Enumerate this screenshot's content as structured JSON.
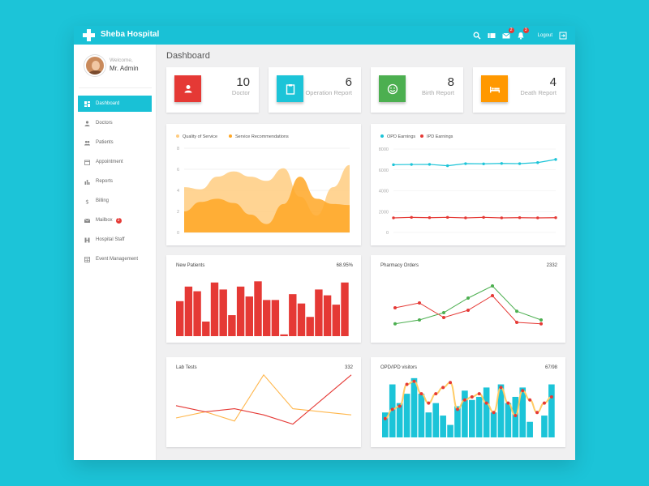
{
  "app": {
    "title": "Sheba Hospital"
  },
  "topbar": {
    "mail_badge": "2",
    "bell_badge": "3",
    "logout_label": "Logout"
  },
  "user": {
    "welcome": "Welcome,",
    "name": "Mr. Admin"
  },
  "nav": [
    {
      "label": "Dashboard",
      "icon": "dashboard-icon",
      "active": true
    },
    {
      "label": "Doctors",
      "icon": "person-icon"
    },
    {
      "label": "Patients",
      "icon": "people-icon"
    },
    {
      "label": "Appointment",
      "icon": "calendar-icon"
    },
    {
      "label": "Reports",
      "icon": "bar-chart-icon"
    },
    {
      "label": "Billing",
      "icon": "dollar-icon"
    },
    {
      "label": "Mailbox",
      "icon": "mail-icon",
      "badge": "2"
    },
    {
      "label": "Hospital Staff",
      "icon": "staff-icon"
    },
    {
      "label": "Event Management",
      "icon": "event-icon"
    }
  ],
  "page": {
    "title": "Dashboard"
  },
  "stats": [
    {
      "value": "10",
      "label": "Doctor",
      "color": "#e53935",
      "icon": "person-icon"
    },
    {
      "value": "6",
      "label": "Operation Report",
      "color": "#1cc4d8",
      "icon": "clipboard-icon"
    },
    {
      "value": "8",
      "label": "Birth Report",
      "color": "#4caf50",
      "icon": "smile-icon"
    },
    {
      "value": "4",
      "label": "Death Report",
      "color": "#ff9800",
      "icon": "bed-icon"
    }
  ],
  "colors": {
    "accent": "#1cc4d8",
    "red": "#e53935",
    "orange": "#ffa726",
    "green": "#4caf50"
  },
  "chart_data": [
    {
      "type": "area",
      "title": "",
      "legend_position": "top-left",
      "x": [
        0,
        1,
        2,
        3,
        4,
        5,
        6,
        7,
        8,
        9,
        10
      ],
      "ylim": [
        0,
        8
      ],
      "yticks": [
        0,
        2,
        4,
        6,
        8
      ],
      "grid": true,
      "series": [
        {
          "name": "Quality of Service",
          "color": "#ffcc80",
          "values": [
            4.3,
            4.1,
            5.3,
            5.8,
            5.3,
            4.9,
            6.1,
            3.4,
            1.6,
            4.3,
            6.4
          ]
        },
        {
          "name": "Service Recommendations",
          "color": "#ffa726",
          "values": [
            2.0,
            2.9,
            3.2,
            2.8,
            1.7,
            0.8,
            2.7,
            5.3,
            3.2,
            2.7,
            2.6
          ]
        }
      ]
    },
    {
      "type": "line",
      "title": "",
      "legend_position": "top-left",
      "x": [
        0,
        1,
        2,
        3,
        4,
        5,
        6,
        7,
        8,
        9
      ],
      "ylim": [
        0,
        8000
      ],
      "yticks": [
        0,
        2000,
        4000,
        6000,
        8000
      ],
      "grid": true,
      "series": [
        {
          "name": "OPD Earnings",
          "color": "#1cc4d8",
          "values": [
            6500,
            6520,
            6530,
            6400,
            6600,
            6580,
            6620,
            6600,
            6700,
            7000
          ]
        },
        {
          "name": "IPD Earnings",
          "color": "#e53935",
          "values": [
            1400,
            1450,
            1420,
            1450,
            1400,
            1450,
            1400,
            1420,
            1400,
            1420
          ]
        }
      ]
    },
    {
      "type": "bar",
      "title": "New Patients",
      "summary": "68.95%",
      "color": "#e53935",
      "values": [
        60,
        85,
        77,
        25,
        92,
        80,
        36,
        85,
        68,
        94,
        62,
        62,
        3,
        72,
        56,
        33,
        80,
        70,
        54,
        92
      ]
    },
    {
      "type": "line",
      "title": "Pharmacy Orders",
      "summary": "2332",
      "x": [
        0,
        1,
        2,
        3,
        4,
        5,
        6
      ],
      "series": [
        {
          "name": "",
          "color": "#4caf50",
          "values": [
            2,
            10,
            25,
            55,
            80,
            28,
            10
          ]
        },
        {
          "name": "",
          "color": "#e53935",
          "values": [
            35,
            45,
            15,
            30,
            60,
            5,
            2
          ]
        }
      ]
    },
    {
      "type": "line",
      "title": "Lab Tests",
      "summary": "332",
      "x": [
        0,
        1,
        2,
        3,
        4,
        5,
        6
      ],
      "series": [
        {
          "name": "",
          "color": "#ffb74d",
          "values": [
            25,
            35,
            20,
            95,
            40,
            35,
            30
          ]
        },
        {
          "name": "",
          "color": "#e53935",
          "values": [
            45,
            35,
            40,
            30,
            15,
            55,
            95
          ]
        }
      ]
    },
    {
      "type": "bar-line",
      "title": "OPD/IPD visitors",
      "summary": "67/98",
      "bar_color": "#1cc4d8",
      "line_color": "#ffcc66",
      "point_color": "#e53935",
      "bars": [
        40,
        85,
        55,
        70,
        95,
        70,
        40,
        55,
        35,
        20,
        50,
        75,
        60,
        65,
        80,
        40,
        85,
        55,
        65,
        80,
        25,
        0,
        35,
        85
      ],
      "line": [
        30,
        45,
        50,
        85,
        90,
        70,
        55,
        70,
        80,
        88,
        45,
        60,
        65,
        70,
        55,
        40,
        80,
        55,
        35,
        75,
        60,
        40,
        55,
        65
      ]
    }
  ]
}
